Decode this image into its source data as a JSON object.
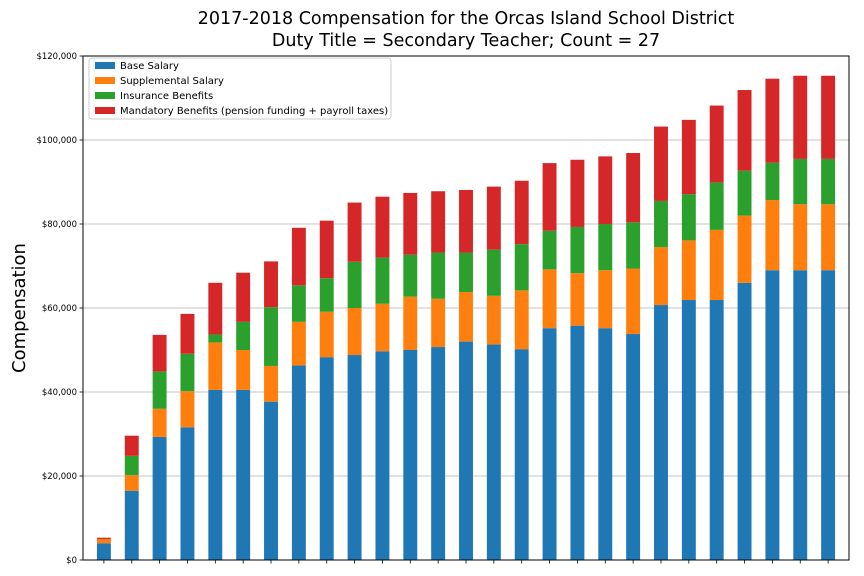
{
  "chart_data": {
    "type": "bar",
    "stacked": true,
    "title": "2017-2018 Compensation for the Orcas Island School District",
    "subtitle": "Duty Title = Secondary Teacher; Count = 27",
    "xlabel": "",
    "ylabel": "Compensation",
    "ylim": [
      0,
      120000
    ],
    "yticks": [
      0,
      20000,
      40000,
      60000,
      80000,
      100000,
      120000
    ],
    "ytick_labels": [
      "$0",
      "$20,000",
      "$40,000",
      "$60,000",
      "$80,000",
      "$100,000",
      "$120,000"
    ],
    "grid": "horizontal",
    "legend_position": "top-left",
    "categories": [
      "",
      "",
      "",
      "",
      "",
      "",
      "",
      "",
      "",
      "",
      "",
      "",
      "",
      "",
      "",
      "",
      "",
      "",
      "",
      "",
      "",
      "",
      "",
      "",
      "",
      "",
      ""
    ],
    "series": [
      {
        "name": "Base Salary",
        "color": "#1f77b4",
        "values": [
          4000,
          16500,
          29300,
          31600,
          40500,
          40500,
          37700,
          46300,
          48300,
          48800,
          49700,
          50000,
          50700,
          52000,
          51300,
          50200,
          55200,
          55800,
          55200,
          53800,
          60700,
          61900,
          61900,
          66000,
          69000,
          69000,
          69000
        ]
      },
      {
        "name": "Supplemental Salary",
        "color": "#ff7f0e",
        "values": [
          1000,
          3700,
          6700,
          8600,
          11300,
          9500,
          8500,
          10400,
          10800,
          11200,
          11300,
          12700,
          11500,
          11800,
          11600,
          14000,
          14000,
          12500,
          13800,
          15600,
          13800,
          14200,
          16700,
          16000,
          16700,
          15700,
          15700
        ]
      },
      {
        "name": "Insurance Benefits",
        "color": "#2ca02c",
        "values": [
          0,
          4600,
          8900,
          8900,
          1900,
          6700,
          14000,
          8700,
          8000,
          11000,
          11000,
          10000,
          11000,
          9400,
          11000,
          11000,
          9200,
          11000,
          11000,
          11000,
          11000,
          11000,
          11300,
          10700,
          8900,
          10800,
          10800
        ]
      },
      {
        "name": "Mandatory Benefits (pension funding + payroll taxes)",
        "color": "#d62728",
        "values": [
          300,
          4800,
          8700,
          9500,
          12300,
          11700,
          10900,
          13700,
          13700,
          14100,
          14500,
          14700,
          14600,
          14900,
          15000,
          15100,
          16100,
          16000,
          16100,
          16500,
          17700,
          17700,
          18300,
          19200,
          20000,
          19800,
          19800
        ]
      }
    ]
  }
}
